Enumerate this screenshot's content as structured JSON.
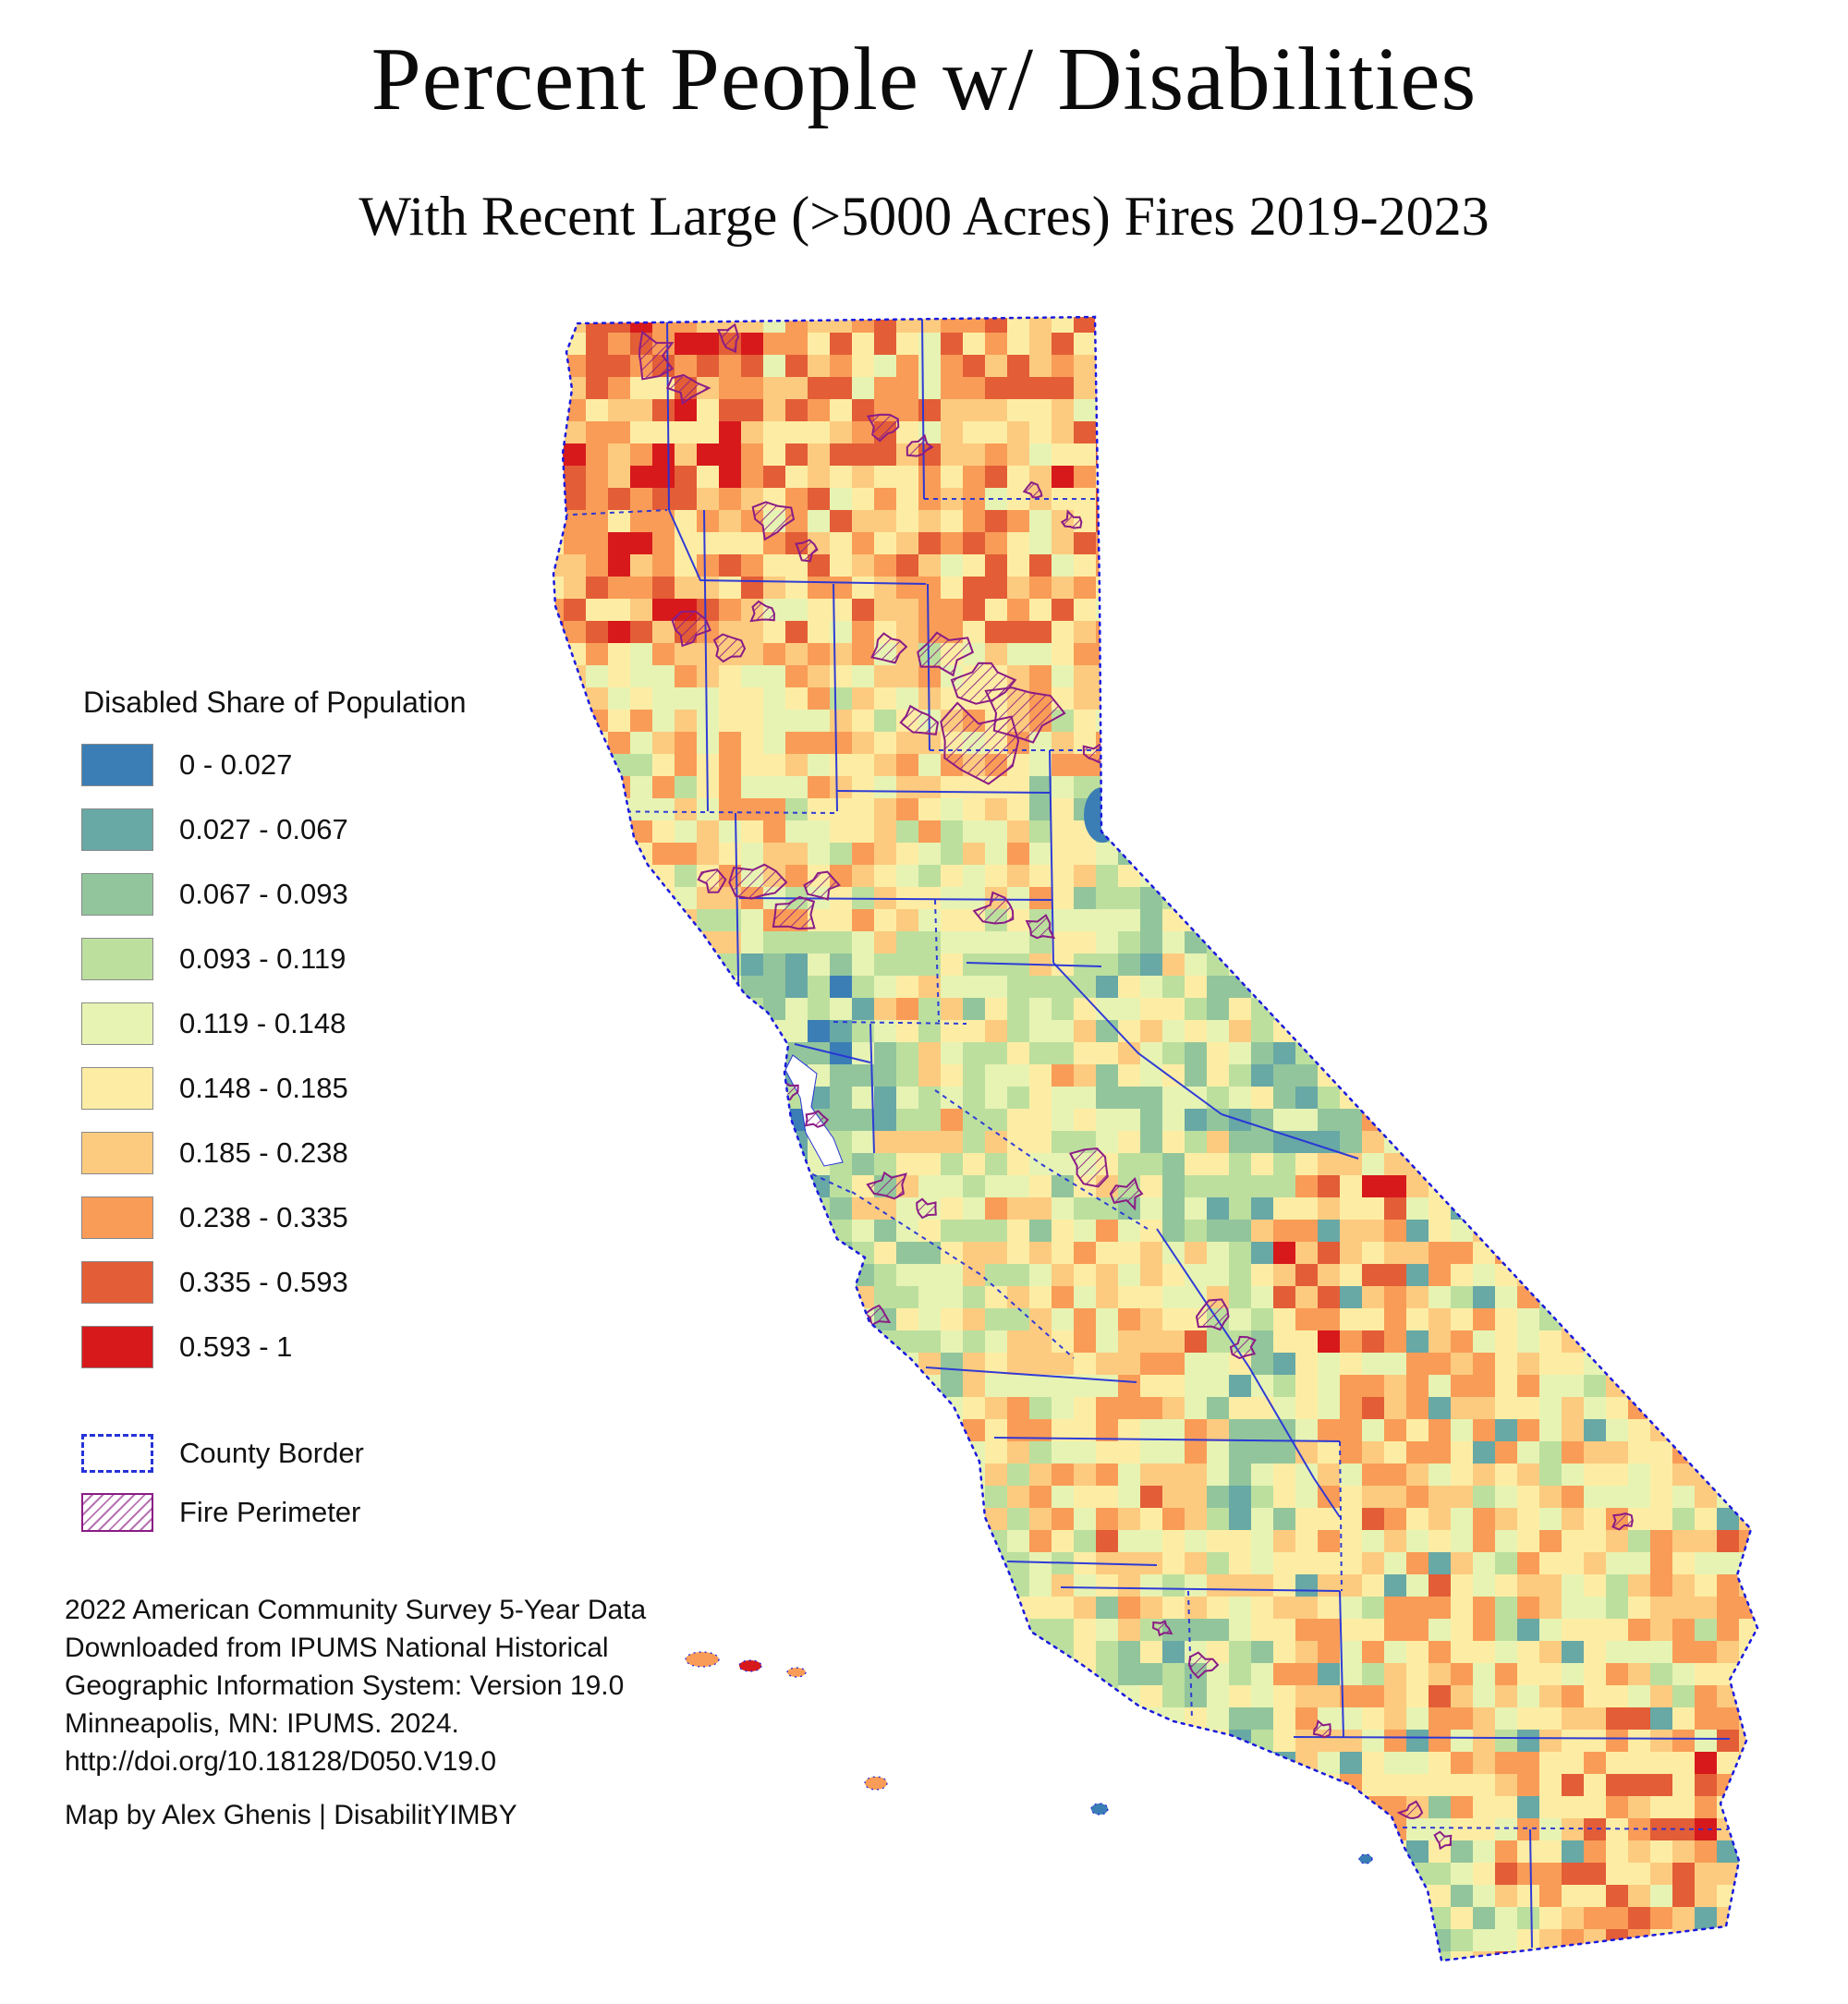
{
  "title": "Percent People w/ Disabilities",
  "subtitle": "With Recent Large (>5000 Acres) Fires 2019-2023",
  "legend": {
    "title": "Disabled Share of Population",
    "classes": [
      {
        "label": "0 - 0.027",
        "color": "#3b7eb5"
      },
      {
        "label": "0.027 - 0.067",
        "color": "#68a8a5"
      },
      {
        "label": "0.067 - 0.093",
        "color": "#92c59b"
      },
      {
        "label": "0.093 - 0.119",
        "color": "#bcdf9e"
      },
      {
        "label": "0.119 - 0.148",
        "color": "#e7f3b3"
      },
      {
        "label": "0.148 - 0.185",
        "color": "#fdeda4"
      },
      {
        "label": "0.185 - 0.238",
        "color": "#fccb7f"
      },
      {
        "label": "0.238 - 0.335",
        "color": "#f99c57"
      },
      {
        "label": "0.335 - 0.593",
        "color": "#e35d37"
      },
      {
        "label": "0.593 - 1",
        "color": "#d7191c"
      }
    ],
    "county_border_label": "County Border",
    "fire_perimeter_label": "Fire Perimeter"
  },
  "map": {
    "region": "California",
    "county_border_color": "#2633d8",
    "state_border_color": "#1a1adf",
    "fire_color": "#8a1c86"
  },
  "source_lines": [
    "2022 American Community Survey 5-Year Data",
    "Downloaded from IPUMS National Historical",
    "Geographic Information System: Version 19.0",
    "Minneapolis, MN: IPUMS. 2024.",
    "http://doi.org/10.18128/D050.V19.0"
  ],
  "credit": "Map by Alex Ghenis | DisabilitYIMBY"
}
